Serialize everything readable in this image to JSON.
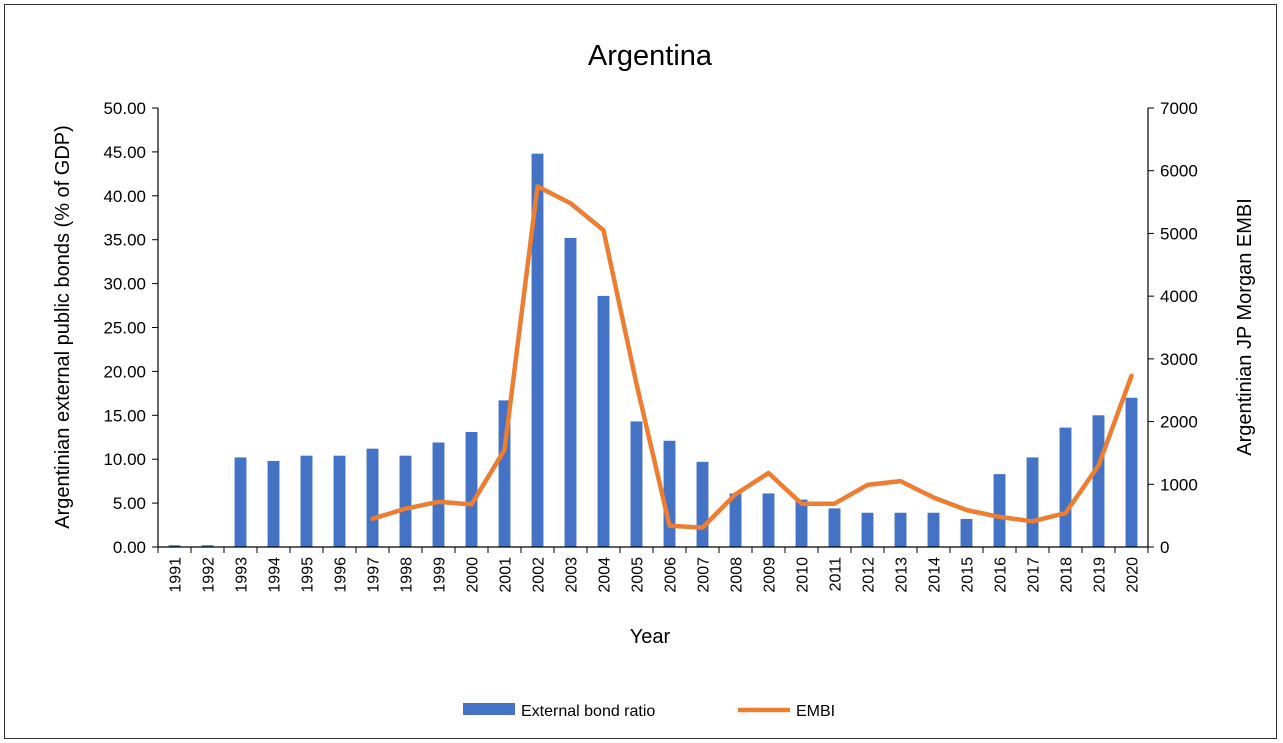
{
  "chart_data": {
    "type": "bar+line",
    "title": "Argentina",
    "xlabel": "Year",
    "ylabel_left": "Argentinian external public bonds (% of GDP)",
    "ylabel_right": "Argentinian JP Morgan EMBI",
    "categories": [
      "1991",
      "1992",
      "1993",
      "1994",
      "1995",
      "1996",
      "1997",
      "1998",
      "1999",
      "2000",
      "2001",
      "2002",
      "2003",
      "2004",
      "2005",
      "2006",
      "2007",
      "2008",
      "2009",
      "2010",
      "2011",
      "2012",
      "2013",
      "2014",
      "2015",
      "2016",
      "2017",
      "2018",
      "2019",
      "2020"
    ],
    "ylim_left": [
      0,
      50
    ],
    "ylim_right": [
      0,
      7000
    ],
    "left_ticks": [
      "0.00",
      "5.00",
      "10.00",
      "15.00",
      "20.00",
      "25.00",
      "30.00",
      "35.00",
      "40.00",
      "45.00",
      "50.00"
    ],
    "right_ticks": [
      "0",
      "1000",
      "2000",
      "3000",
      "4000",
      "5000",
      "6000",
      "7000"
    ],
    "series": [
      {
        "name": "External bond ratio",
        "kind": "bar",
        "axis": "left",
        "color": "#4472C4",
        "values": [
          0.2,
          0.2,
          10.2,
          9.8,
          10.4,
          10.4,
          11.2,
          10.4,
          11.9,
          13.1,
          16.7,
          44.8,
          35.2,
          28.6,
          14.3,
          12.1,
          9.7,
          6.1,
          6.1,
          5.4,
          4.4,
          3.9,
          3.9,
          3.9,
          3.2,
          8.3,
          10.2,
          13.6,
          15.0,
          17.0
        ]
      },
      {
        "name": "EMBI",
        "kind": "line",
        "axis": "right",
        "color": "#ED7D31",
        "values": [
          null,
          null,
          null,
          null,
          null,
          null,
          450,
          610,
          720,
          680,
          1550,
          5750,
          5480,
          5050,
          2600,
          340,
          310,
          840,
          1180,
          690,
          690,
          990,
          1050,
          790,
          590,
          480,
          410,
          540,
          1300,
          2730
        ]
      }
    ],
    "legend_position": "bottom"
  }
}
